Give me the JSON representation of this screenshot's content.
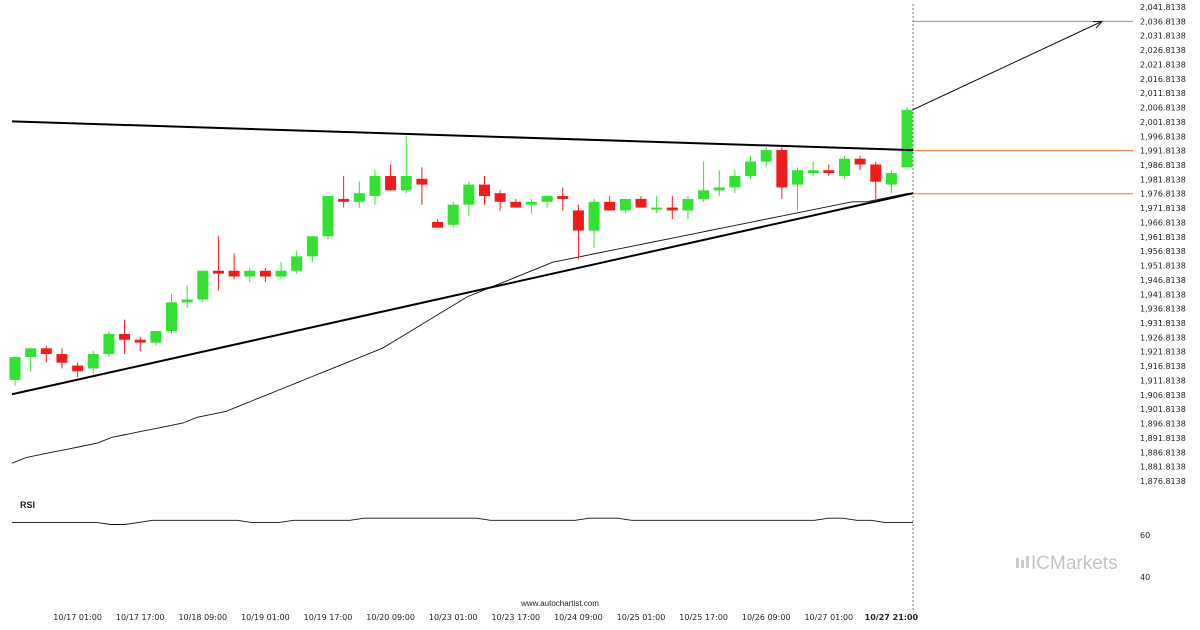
{
  "watermark": {
    "brand_prefix": "IC",
    "brand_suffix": "Markets"
  },
  "footer": {
    "source_url": "www.autochartist.com"
  },
  "rsi": {
    "title": "RSI",
    "ticks": [
      "60",
      "40"
    ],
    "values": [
      66,
      66,
      66,
      66,
      66,
      66,
      66,
      65,
      65,
      66,
      67,
      67,
      67,
      67,
      67,
      67,
      67,
      66,
      66,
      66,
      67,
      67,
      67,
      67,
      67,
      68,
      68,
      68,
      68,
      68,
      68,
      68,
      68,
      68,
      67,
      67,
      67,
      67,
      67,
      67,
      67,
      68,
      68,
      68,
      67,
      67,
      67,
      67,
      67,
      67,
      67,
      67,
      67,
      67,
      67,
      67,
      67,
      67,
      68,
      68,
      67,
      67,
      66,
      66,
      66
    ]
  },
  "colors": {
    "up": "#33e133",
    "down": "#ee1c1c",
    "accent": "#e07b39",
    "trend": "#000000"
  },
  "chart_data": {
    "type": "candlestick",
    "y_tick_labels": [
      "2,041.8138",
      "2,036.8138",
      "2,031.8138",
      "2,026.8138",
      "2,021.8138",
      "2,016.8138",
      "2,011.8138",
      "2,006.8138",
      "2,001.8138",
      "1,996.8138",
      "1,991.8138",
      "1,986.8138",
      "1,981.8138",
      "1,976.8138",
      "1,971.8138",
      "1,966.8138",
      "1,961.8138",
      "1,956.8138",
      "1,951.8138",
      "1,946.8138",
      "1,941.8138",
      "1,936.8138",
      "1,931.8138",
      "1,926.8138",
      "1,921.8138",
      "1,916.8138",
      "1,911.8138",
      "1,906.8138",
      "1,901.8138",
      "1,896.8138",
      "1,891.8138",
      "1,886.8138",
      "1,881.8138",
      "1,876.8138"
    ],
    "ylim": [
      1876.8138,
      2041.8138
    ],
    "x_tick_labels": [
      "10/17 01:00",
      "10/17 17:00",
      "10/18 09:00",
      "10/19 01:00",
      "10/19 17:00",
      "10/20 09:00",
      "10/23 01:00",
      "10/23 17:00",
      "10/24 09:00",
      "10/25 01:00",
      "10/25 17:00",
      "10/26 09:00",
      "10/27 01:00",
      "10/27 21:00"
    ],
    "x_tick_candle_index": [
      4,
      8,
      12,
      16,
      20,
      24,
      28,
      32,
      36,
      40,
      44,
      48,
      52,
      56
    ],
    "candles": [
      {
        "o": 1912,
        "h": 1920,
        "l": 1910,
        "c": 1920
      },
      {
        "o": 1920,
        "h": 1923,
        "l": 1915,
        "c": 1923
      },
      {
        "o": 1923,
        "h": 1924,
        "l": 1918,
        "c": 1921
      },
      {
        "o": 1921,
        "h": 1923,
        "l": 1916,
        "c": 1918
      },
      {
        "o": 1917,
        "h": 1918,
        "l": 1913,
        "c": 1915
      },
      {
        "o": 1916,
        "h": 1922,
        "l": 1914,
        "c": 1921
      },
      {
        "o": 1921,
        "h": 1929,
        "l": 1920,
        "c": 1928
      },
      {
        "o": 1928,
        "h": 1933,
        "l": 1921,
        "c": 1926
      },
      {
        "o": 1926,
        "h": 1927,
        "l": 1922,
        "c": 1925
      },
      {
        "o": 1925,
        "h": 1929,
        "l": 1924,
        "c": 1929
      },
      {
        "o": 1929,
        "h": 1942,
        "l": 1928,
        "c": 1939
      },
      {
        "o": 1939,
        "h": 1945,
        "l": 1937,
        "c": 1940
      },
      {
        "o": 1940,
        "h": 1950,
        "l": 1939,
        "c": 1950
      },
      {
        "o": 1950,
        "h": 1962,
        "l": 1943,
        "c": 1949
      },
      {
        "o": 1950,
        "h": 1956,
        "l": 1947,
        "c": 1948
      },
      {
        "o": 1948,
        "h": 1951,
        "l": 1946,
        "c": 1950
      },
      {
        "o": 1950,
        "h": 1951,
        "l": 1946,
        "c": 1948
      },
      {
        "o": 1948,
        "h": 1953,
        "l": 1947,
        "c": 1950
      },
      {
        "o": 1950,
        "h": 1957,
        "l": 1949,
        "c": 1955
      },
      {
        "o": 1955,
        "h": 1962,
        "l": 1953,
        "c": 1962
      },
      {
        "o": 1962,
        "h": 1976,
        "l": 1961,
        "c": 1976
      },
      {
        "o": 1975,
        "h": 1983,
        "l": 1972,
        "c": 1974
      },
      {
        "o": 1974,
        "h": 1981,
        "l": 1972,
        "c": 1977
      },
      {
        "o": 1976,
        "h": 1985,
        "l": 1973,
        "c": 1983
      },
      {
        "o": 1983,
        "h": 1987,
        "l": 1978,
        "c": 1978
      },
      {
        "o": 1978,
        "h": 1997,
        "l": 1977,
        "c": 1983
      },
      {
        "o": 1982,
        "h": 1986,
        "l": 1973,
        "c": 1980
      },
      {
        "o": 1967,
        "h": 1968,
        "l": 1965,
        "c": 1965
      },
      {
        "o": 1966,
        "h": 1974,
        "l": 1965,
        "c": 1973
      },
      {
        "o": 1973,
        "h": 1981,
        "l": 1969,
        "c": 1980
      },
      {
        "o": 1980,
        "h": 1983,
        "l": 1973,
        "c": 1976
      },
      {
        "o": 1977,
        "h": 1978,
        "l": 1971,
        "c": 1974
      },
      {
        "o": 1974,
        "h": 1975,
        "l": 1972,
        "c": 1972
      },
      {
        "o": 1973,
        "h": 1975,
        "l": 1970,
        "c": 1974
      },
      {
        "o": 1974,
        "h": 1975,
        "l": 1972,
        "c": 1976
      },
      {
        "o": 1976,
        "h": 1979,
        "l": 1971,
        "c": 1975
      },
      {
        "o": 1971,
        "h": 1973,
        "l": 1954,
        "c": 1964
      },
      {
        "o": 1964,
        "h": 1975,
        "l": 1958,
        "c": 1974
      },
      {
        "o": 1974,
        "h": 1976,
        "l": 1971,
        "c": 1971
      },
      {
        "o": 1971,
        "h": 1975,
        "l": 1970,
        "c": 1975
      },
      {
        "o": 1975,
        "h": 1976,
        "l": 1972,
        "c": 1972
      },
      {
        "o": 1972,
        "h": 1976,
        "l": 1970,
        "c": 1972
      },
      {
        "o": 1972,
        "h": 1976,
        "l": 1968,
        "c": 1971
      },
      {
        "o": 1971,
        "h": 1976,
        "l": 1968,
        "c": 1975
      },
      {
        "o": 1975,
        "h": 1988,
        "l": 1974,
        "c": 1978
      },
      {
        "o": 1978,
        "h": 1985,
        "l": 1976,
        "c": 1979
      },
      {
        "o": 1979,
        "h": 1985,
        "l": 1977,
        "c": 1983
      },
      {
        "o": 1983,
        "h": 1990,
        "l": 1982,
        "c": 1988
      },
      {
        "o": 1988,
        "h": 1993,
        "l": 1986,
        "c": 1992
      },
      {
        "o": 1992,
        "h": 1993,
        "l": 1975,
        "c": 1979
      },
      {
        "o": 1980,
        "h": 1986,
        "l": 1971,
        "c": 1985
      },
      {
        "o": 1984,
        "h": 1988,
        "l": 1983,
        "c": 1985
      },
      {
        "o": 1985,
        "h": 1987,
        "l": 1983,
        "c": 1984
      },
      {
        "o": 1983,
        "h": 1990,
        "l": 1982,
        "c": 1989
      },
      {
        "o": 1989,
        "h": 1990,
        "l": 1985,
        "c": 1987
      },
      {
        "o": 1987,
        "h": 1988,
        "l": 1975,
        "c": 1981
      },
      {
        "o": 1980,
        "h": 1985,
        "l": 1977,
        "c": 1984
      },
      {
        "o": 1986,
        "h": 2007,
        "l": 1986,
        "c": 2006
      }
    ],
    "moving_average": [
      1883,
      1885,
      1886,
      1887,
      1888,
      1889,
      1890,
      1892,
      1893,
      1894,
      1895,
      1896,
      1897,
      1899,
      1900,
      1901,
      1903,
      1905,
      1907,
      1909,
      1911,
      1913,
      1915,
      1917,
      1919,
      1921,
      1923,
      1926,
      1929,
      1932,
      1935,
      1938,
      1941,
      1943,
      1945,
      1947,
      1949,
      1951,
      1953,
      1954,
      1955,
      1956,
      1957,
      1958,
      1959,
      1960,
      1961,
      1962,
      1963,
      1964,
      1965,
      1966,
      1967,
      1968,
      1969,
      1970,
      1971,
      1972,
      1973,
      1974,
      1974,
      1975,
      1976,
      1977
    ],
    "resistance_line": [
      [
        0,
        2002
      ],
      [
        58,
        1992
      ]
    ],
    "support_line": [
      [
        0,
        1907
      ],
      [
        58,
        1977
      ]
    ],
    "breakout_price": 1991.8138,
    "support_level": 1976.8138,
    "target_price": 2036.8138
  }
}
